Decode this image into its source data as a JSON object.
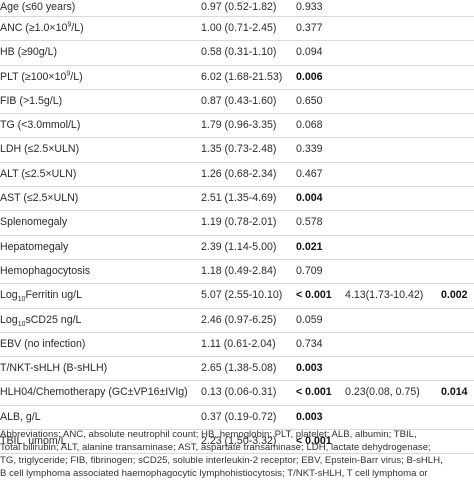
{
  "table": {
    "rows": [
      {
        "var_pre": "Age (≤60 years)",
        "sub": "",
        "sup": "",
        "var_post": "",
        "univariate": "0.97 (0.52-1.82)",
        "p_uni": "0.933",
        "p_uni_bold": false,
        "multivariate": "",
        "p_multi": ""
      },
      {
        "var_pre": "ANC (≥1.0×10",
        "sub": "",
        "sup": "9",
        "var_post": "/L)",
        "univariate": "1.00 (0.71-2.45)",
        "p_uni": "0.377",
        "p_uni_bold": false,
        "multivariate": "",
        "p_multi": ""
      },
      {
        "var_pre": "HB (≥90g/L)",
        "sub": "",
        "sup": "",
        "var_post": "",
        "univariate": "0.58 (0.31-1.10)",
        "p_uni": "0.094",
        "p_uni_bold": false,
        "multivariate": "",
        "p_multi": ""
      },
      {
        "var_pre": "PLT (≥100×10",
        "sub": "",
        "sup": "9",
        "var_post": "/L)",
        "univariate": "6.02 (1.68-21.53)",
        "p_uni": "0.006",
        "p_uni_bold": true,
        "multivariate": "",
        "p_multi": ""
      },
      {
        "var_pre": "FIB (>1.5g/L)",
        "sub": "",
        "sup": "",
        "var_post": "",
        "univariate": "0.87 (0.43-1.60)",
        "p_uni": "0.650",
        "p_uni_bold": false,
        "multivariate": "",
        "p_multi": ""
      },
      {
        "var_pre": "TG (<3.0mmol/L)",
        "sub": "",
        "sup": "",
        "var_post": "",
        "univariate": "1.79 (0.96-3.35)",
        "p_uni": "0.068",
        "p_uni_bold": false,
        "multivariate": "",
        "p_multi": ""
      },
      {
        "var_pre": "LDH (≤2.5×ULN)",
        "sub": "",
        "sup": "",
        "var_post": "",
        "univariate": "1.35 (0.73-2.48)",
        "p_uni": "0.339",
        "p_uni_bold": false,
        "multivariate": "",
        "p_multi": ""
      },
      {
        "var_pre": "ALT (≤2.5×ULN)",
        "sub": "",
        "sup": "",
        "var_post": "",
        "univariate": "1.26 (0.68-2.34)",
        "p_uni": "0.467",
        "p_uni_bold": false,
        "multivariate": "",
        "p_multi": ""
      },
      {
        "var_pre": "AST (≤2.5×ULN)",
        "sub": "",
        "sup": "",
        "var_post": "",
        "univariate": "2.51 (1.35-4.69)",
        "p_uni": "0.004",
        "p_uni_bold": true,
        "multivariate": "",
        "p_multi": ""
      },
      {
        "var_pre": "Splenomegaly",
        "sub": "",
        "sup": "",
        "var_post": "",
        "univariate": "1.19 (0.78-2.01)",
        "p_uni": "0.578",
        "p_uni_bold": false,
        "multivariate": "",
        "p_multi": ""
      },
      {
        "var_pre": "Hepatomegaly",
        "sub": "",
        "sup": "",
        "var_post": "",
        "univariate": "2.39 (1.14-5.00)",
        "p_uni": "0.021",
        "p_uni_bold": true,
        "multivariate": "",
        "p_multi": ""
      },
      {
        "var_pre": "Hemophagocytosis",
        "sub": "",
        "sup": "",
        "var_post": "",
        "univariate": "1.18 (0.49-2.84)",
        "p_uni": "0.709",
        "p_uni_bold": false,
        "multivariate": "",
        "p_multi": ""
      },
      {
        "var_pre": "Log",
        "sub": "10",
        "sup": "",
        "var_post": "Ferritin ug/L",
        "univariate": "5.07 (2.55-10.10)",
        "p_uni": "< 0.001",
        "p_uni_bold": true,
        "multivariate": "4.13(1.73-10.42)",
        "p_multi": "0.002"
      },
      {
        "var_pre": "Log",
        "sub": "10",
        "sup": "",
        "var_post": "sCD25 ng/L",
        "univariate": "2.46 (0.97-6.25)",
        "p_uni": "0.059",
        "p_uni_bold": false,
        "multivariate": "",
        "p_multi": ""
      },
      {
        "var_pre": "EBV (no infection)",
        "sub": "",
        "sup": "",
        "var_post": "",
        "univariate": "1.11 (0.61-2.04)",
        "p_uni": "0.734",
        "p_uni_bold": false,
        "multivariate": "",
        "p_multi": ""
      },
      {
        "var_pre": "T/NKT-sHLH (B-sHLH)",
        "sub": "",
        "sup": "",
        "var_post": "",
        "univariate": "2.65 (1.38-5.08)",
        "p_uni": "0.003",
        "p_uni_bold": true,
        "multivariate": "",
        "p_multi": ""
      },
      {
        "var_pre": "HLH04/Chemotherapy (GC±VP16±IVIg)",
        "sub": "",
        "sup": "",
        "var_post": "",
        "univariate": "0.13 (0.06-0.31)",
        "p_uni": "< 0.001",
        "p_uni_bold": true,
        "multivariate": "0.23(0.08, 0.75)",
        "p_multi": "0.014"
      },
      {
        "var_pre": "ALB, g/L",
        "sub": "",
        "sup": "",
        "var_post": "",
        "univariate": "0.37 (0.19-0.72)",
        "p_uni": "0.003",
        "p_uni_bold": true,
        "multivariate": "",
        "p_multi": ""
      },
      {
        "var_pre": "TBIL, umom/L",
        "sub": "",
        "sup": "",
        "var_post": "",
        "univariate": "2.23 (1.50-3.32)",
        "p_uni": "< 0.001",
        "p_uni_bold": true,
        "multivariate": "",
        "p_multi": ""
      }
    ]
  },
  "footnote": {
    "lines": [
      "Abbreviations: ANC, absolute neutrophil count; HB, hemoglobin; PLT, platelet; ALB, albumin; TBIL,",
      "Total bilirubin; ALT, alanine transaminase; AST, aspartate transaminase; LDH, lactate dehydrogenase;",
      "TG, triglyceride; FIB, fibrinogen; sCD25, soluble interleukin-2 receptor; EBV, Epstein-Barr virus; B-sHLH,",
      "B cell lymphoma associated haemophagocytic lymphohistiocytosis; T/NKT-sHLH, T cell lymphoma or"
    ]
  }
}
